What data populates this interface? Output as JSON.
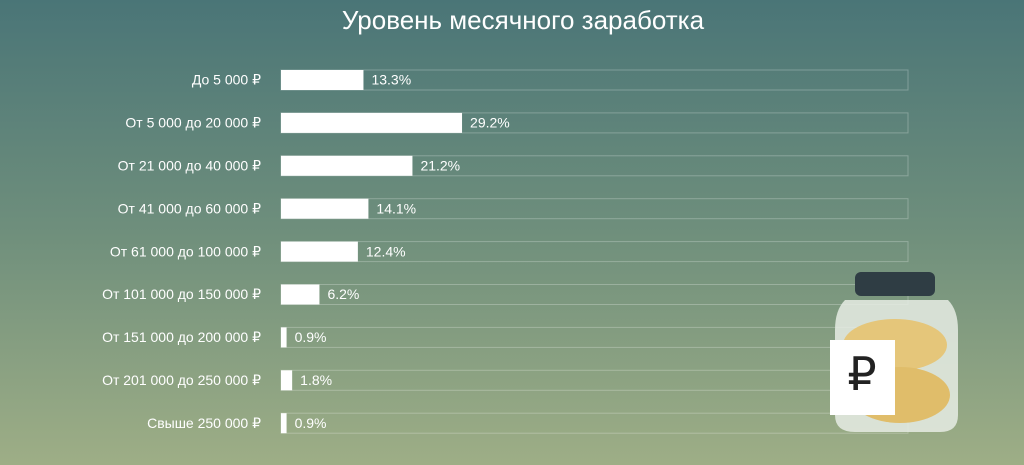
{
  "chart_data": {
    "type": "bar",
    "title": "Уровень месячного заработка",
    "categories": [
      "До 5 000 ₽",
      "От 5 000 до 20 000 ₽",
      "От 21 000 до 40 000 ₽",
      "От 41 000 до 60 000 ₽",
      "От 61 000 до 100 000 ₽",
      "От 101 000 до 150 000 ₽",
      "От 151 000 до 200 000 ₽",
      "От 201 000 до 250 000 ₽",
      "Свыше 250 000 ₽"
    ],
    "values": [
      13.3,
      29.2,
      21.2,
      14.1,
      12.4,
      6.2,
      0.9,
      1.8,
      0.9
    ],
    "value_labels": [
      "13.3%",
      "29.2%",
      "21.2%",
      "14.1%",
      "12.4%",
      "6.2%",
      "0.9%",
      "1.8%",
      "0.9%"
    ],
    "color": "#ffffff"
  }
}
